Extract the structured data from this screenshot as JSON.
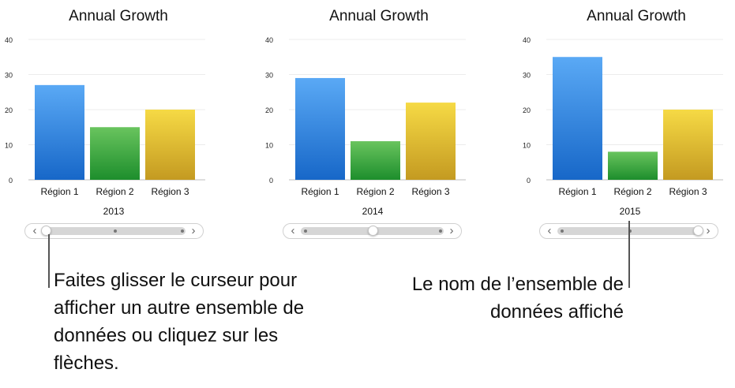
{
  "colors": {
    "series": [
      {
        "top": "#5aa9f5",
        "bottom": "#1767c8"
      },
      {
        "top": "#69c45e",
        "bottom": "#1d8e2c"
      },
      {
        "top": "#f6da45",
        "bottom": "#c49a21"
      }
    ],
    "grid": "#ececec",
    "axis": "#bdbdbd"
  },
  "chart_data": [
    {
      "type": "bar",
      "title": "Annual Growth",
      "categories": [
        "Région 1",
        "Région 2",
        "Région 3"
      ],
      "values": [
        27,
        15,
        20
      ],
      "ylim": [
        0,
        40
      ],
      "yticks": [
        0,
        10,
        20,
        30,
        40
      ],
      "dataset": "2013",
      "slider_position": 0
    },
    {
      "type": "bar",
      "title": "Annual Growth",
      "categories": [
        "Région 1",
        "Région 2",
        "Région 3"
      ],
      "values": [
        29,
        11,
        22
      ],
      "ylim": [
        0,
        40
      ],
      "yticks": [
        0,
        10,
        20,
        30,
        40
      ],
      "dataset": "2014",
      "slider_position": 0.5
    },
    {
      "type": "bar",
      "title": "Annual Growth",
      "categories": [
        "Région 1",
        "Région 2",
        "Région 3"
      ],
      "values": [
        35,
        8,
        20
      ],
      "ylim": [
        0,
        40
      ],
      "yticks": [
        0,
        10,
        20,
        30,
        40
      ],
      "dataset": "2015",
      "slider_position": 1
    }
  ],
  "slider": {
    "left_arrow": "‹",
    "right_arrow": "›",
    "icon_left": "chevron-left-icon",
    "icon_right": "chevron-right-icon"
  },
  "callouts": {
    "left": "Faites glisser le curseur pour afficher un autre ensemble de données ou cliquez sur les flèches.",
    "right": "Le nom de l’ensemble de données affiché"
  }
}
